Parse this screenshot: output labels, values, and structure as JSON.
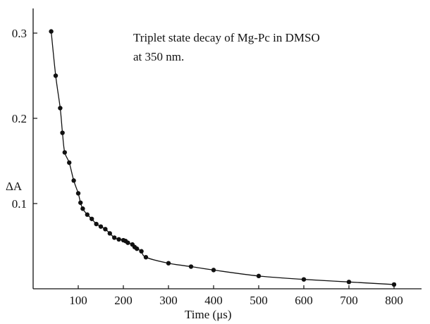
{
  "chart_data": {
    "type": "scatter",
    "title": "",
    "annotation": [
      "Triplet state decay of Mg-Pc in DMSO",
      "at 350 nm."
    ],
    "xlabel": "Time (μs)",
    "ylabel": "ΔA",
    "xlim": [
      0,
      860
    ],
    "ylim": [
      0,
      0.33
    ],
    "xticks": [
      100,
      200,
      300,
      400,
      500,
      600,
      700,
      800
    ],
    "yticks": [
      0.1,
      0.2,
      0.3
    ],
    "xtick_labels": [
      "100",
      "200",
      "300",
      "400",
      "500",
      "600",
      "700",
      "800"
    ],
    "ytick_labels": [
      "0.1",
      "0.2",
      "0.3"
    ],
    "grid": false,
    "series": [
      {
        "x": [
          40,
          50,
          60,
          65,
          70,
          80,
          90,
          100,
          105,
          110,
          120,
          130,
          140,
          150,
          160,
          170,
          180,
          190,
          200,
          205,
          210,
          220,
          225,
          230,
          240,
          250,
          300,
          350,
          400,
          500,
          600,
          700,
          800
        ],
        "y": [
          0.302,
          0.25,
          0.212,
          0.183,
          0.16,
          0.148,
          0.127,
          0.112,
          0.101,
          0.094,
          0.087,
          0.082,
          0.076,
          0.073,
          0.07,
          0.065,
          0.06,
          0.058,
          0.057,
          0.056,
          0.054,
          0.052,
          0.049,
          0.047,
          0.044,
          0.037,
          0.03,
          0.026,
          0.022,
          0.015,
          0.011,
          0.008,
          0.005
        ]
      }
    ]
  }
}
